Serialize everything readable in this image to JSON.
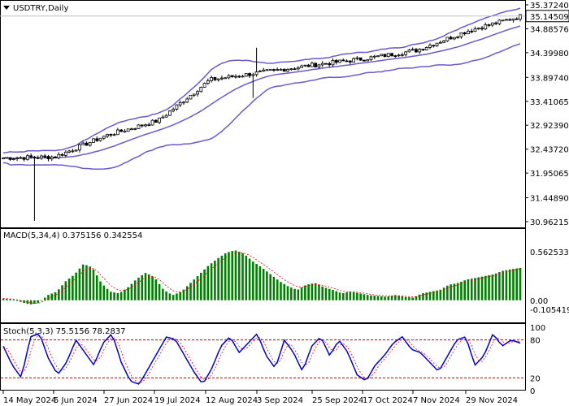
{
  "chart_data": {
    "type": "candlestick",
    "symbol_label": "USDTRY,Daily",
    "last_price_label": "35.14509",
    "price_axis": {
      "ticks": [
        "35.37240",
        "34.88576",
        "34.39980",
        "33.89740",
        "33.41065",
        "32.92390",
        "32.43720",
        "31.95065",
        "31.44890",
        "30.96215"
      ],
      "ylim": [
        30.96215,
        35.3724
      ]
    },
    "x_axis": {
      "ticks": [
        "14 May 2024",
        "5 Jun 2024",
        "27 Jun 2024",
        "19 Jul 2024",
        "12 Aug 2024",
        "3 Sep 2024",
        "25 Sep 2024",
        "17 Oct 2024",
        "7 Nov 2024",
        "29 Nov 2024"
      ]
    },
    "close_series_approx": [
      {
        "date": "14 May 2024",
        "close": 32.26
      },
      {
        "date": "5 Jun 2024",
        "close": 32.28
      },
      {
        "date": "27 Jun 2024",
        "close": 32.72
      },
      {
        "date": "19 Jul 2024",
        "close": 33.02
      },
      {
        "date": "12 Aug 2024",
        "close": 33.85
      },
      {
        "date": "3 Sep 2024",
        "close": 34.0
      },
      {
        "date": "25 Sep 2024",
        "close": 34.15
      },
      {
        "date": "17 Oct 2024",
        "close": 34.28
      },
      {
        "date": "7 Nov 2024",
        "close": 34.45
      },
      {
        "date": "29 Nov 2024",
        "close": 34.85
      },
      {
        "date": "end",
        "close": 35.14
      }
    ],
    "indicators": {
      "macd": {
        "label": "MACD(5,34,4) 0.375156 0.342554",
        "axis_ticks": [
          "0.562533",
          "0.00",
          "-0.105419"
        ],
        "ylim": [
          -0.105419,
          0.562533
        ],
        "histogram_approx": [
          0.02,
          0.01,
          -0.02,
          -0.05,
          -0.03,
          0.06,
          0.1,
          0.22,
          0.3,
          0.42,
          0.38,
          0.2,
          0.1,
          0.08,
          0.15,
          0.25,
          0.32,
          0.26,
          0.12,
          0.06,
          0.1,
          0.2,
          0.3,
          0.4,
          0.48,
          0.55,
          0.58,
          0.54,
          0.45,
          0.38,
          0.3,
          0.22,
          0.16,
          0.12,
          0.18,
          0.2,
          0.15,
          0.12,
          0.08,
          0.1,
          0.08,
          0.06,
          0.05,
          0.04,
          0.06,
          0.04,
          0.03,
          0.08,
          0.1,
          0.12,
          0.18,
          0.2,
          0.24,
          0.26,
          0.28,
          0.3,
          0.34,
          0.36,
          0.375
        ]
      },
      "stochastic": {
        "label": "Stoch(5,3,3) 75.5156 78.2837",
        "axis_ticks": [
          "100",
          "80",
          "20",
          "0"
        ],
        "levels": [
          80,
          20
        ],
        "ylim": [
          0,
          100
        ],
        "k_approx": [
          70,
          40,
          20,
          85,
          90,
          50,
          25,
          45,
          80,
          60,
          40,
          75,
          90,
          45,
          15,
          10,
          35,
          60,
          85,
          80,
          55,
          30,
          10,
          35,
          70,
          85,
          60,
          75,
          90,
          55,
          35,
          80,
          60,
          30,
          70,
          85,
          55,
          80,
          60,
          25,
          15,
          40,
          55,
          75,
          85,
          65,
          60,
          45,
          30,
          55,
          80,
          85,
          40,
          55,
          90,
          70,
          80,
          75
        ]
      }
    },
    "colors": {
      "candle": "#000000",
      "bollinger": "#6a5acd",
      "macd_histogram": "#008000",
      "macd_signal": "#ff0000",
      "stoch_k": "#0000cd",
      "stoch_d": "#ff0000",
      "level_line": "#c00000"
    },
    "grid": false
  }
}
